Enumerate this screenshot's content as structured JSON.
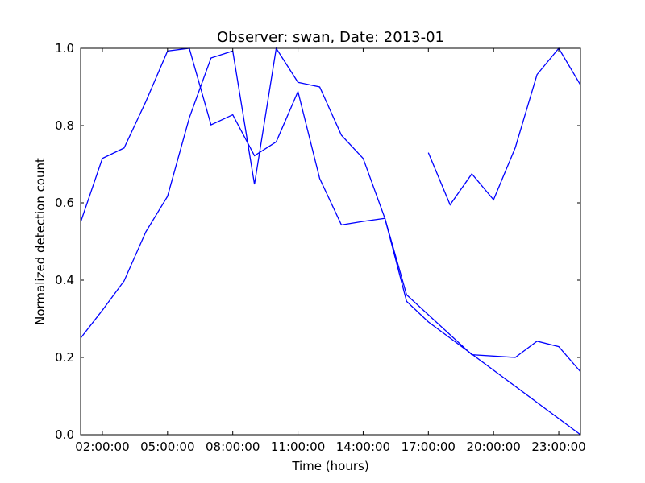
{
  "chart_data": {
    "type": "line",
    "title": "Observer: swan, Date: 2013-01",
    "xlabel": "Time (hours)",
    "ylabel": "Normalized detection count",
    "xlim": [
      1,
      24
    ],
    "ylim": [
      0.0,
      1.0
    ],
    "xticks": [
      {
        "value": 2,
        "label": "02:00:00"
      },
      {
        "value": 5,
        "label": "05:00:00"
      },
      {
        "value": 8,
        "label": "08:00:00"
      },
      {
        "value": 11,
        "label": "11:00:00"
      },
      {
        "value": 14,
        "label": "14:00:00"
      },
      {
        "value": 17,
        "label": "17:00:00"
      },
      {
        "value": 20,
        "label": "20:00:00"
      },
      {
        "value": 23,
        "label": "23:00:00"
      }
    ],
    "yticks": [
      {
        "value": 0.0,
        "label": "0.0"
      },
      {
        "value": 0.2,
        "label": "0.2"
      },
      {
        "value": 0.4,
        "label": "0.4"
      },
      {
        "value": 0.6,
        "label": "0.6"
      },
      {
        "value": 0.8,
        "label": "0.8"
      },
      {
        "value": 1.0,
        "label": "1.0"
      }
    ],
    "grid": false,
    "line_color": "#0000ff",
    "series": [
      {
        "x": [
          1,
          2,
          3,
          4,
          5,
          6,
          7,
          8,
          9,
          10,
          11,
          12,
          13,
          14,
          15,
          16,
          19,
          21,
          22,
          23,
          24
        ],
        "y": [
          0.55,
          0.715,
          0.742,
          0.862,
          0.993,
          1.0,
          0.802,
          0.828,
          0.722,
          0.758,
          0.888,
          0.663,
          0.543,
          0.552,
          0.56,
          0.362,
          0.207,
          0.2,
          0.242,
          0.228,
          0.163
        ]
      },
      {
        "x": [
          1,
          2,
          3,
          4,
          5,
          6,
          7,
          8,
          9,
          10,
          11,
          12,
          13,
          14,
          15,
          16,
          17,
          24
        ],
        "y": [
          0.25,
          0.322,
          0.398,
          0.525,
          0.617,
          0.82,
          0.975,
          0.993,
          0.648,
          1.0,
          0.912,
          0.9,
          0.775,
          0.715,
          0.56,
          0.345,
          0.292,
          0.0
        ]
      },
      {
        "x": [
          17,
          18,
          19,
          20,
          21,
          22,
          23,
          24
        ],
        "y": [
          0.73,
          0.595,
          0.675,
          0.608,
          0.743,
          0.932,
          1.0,
          0.905
        ]
      }
    ]
  }
}
